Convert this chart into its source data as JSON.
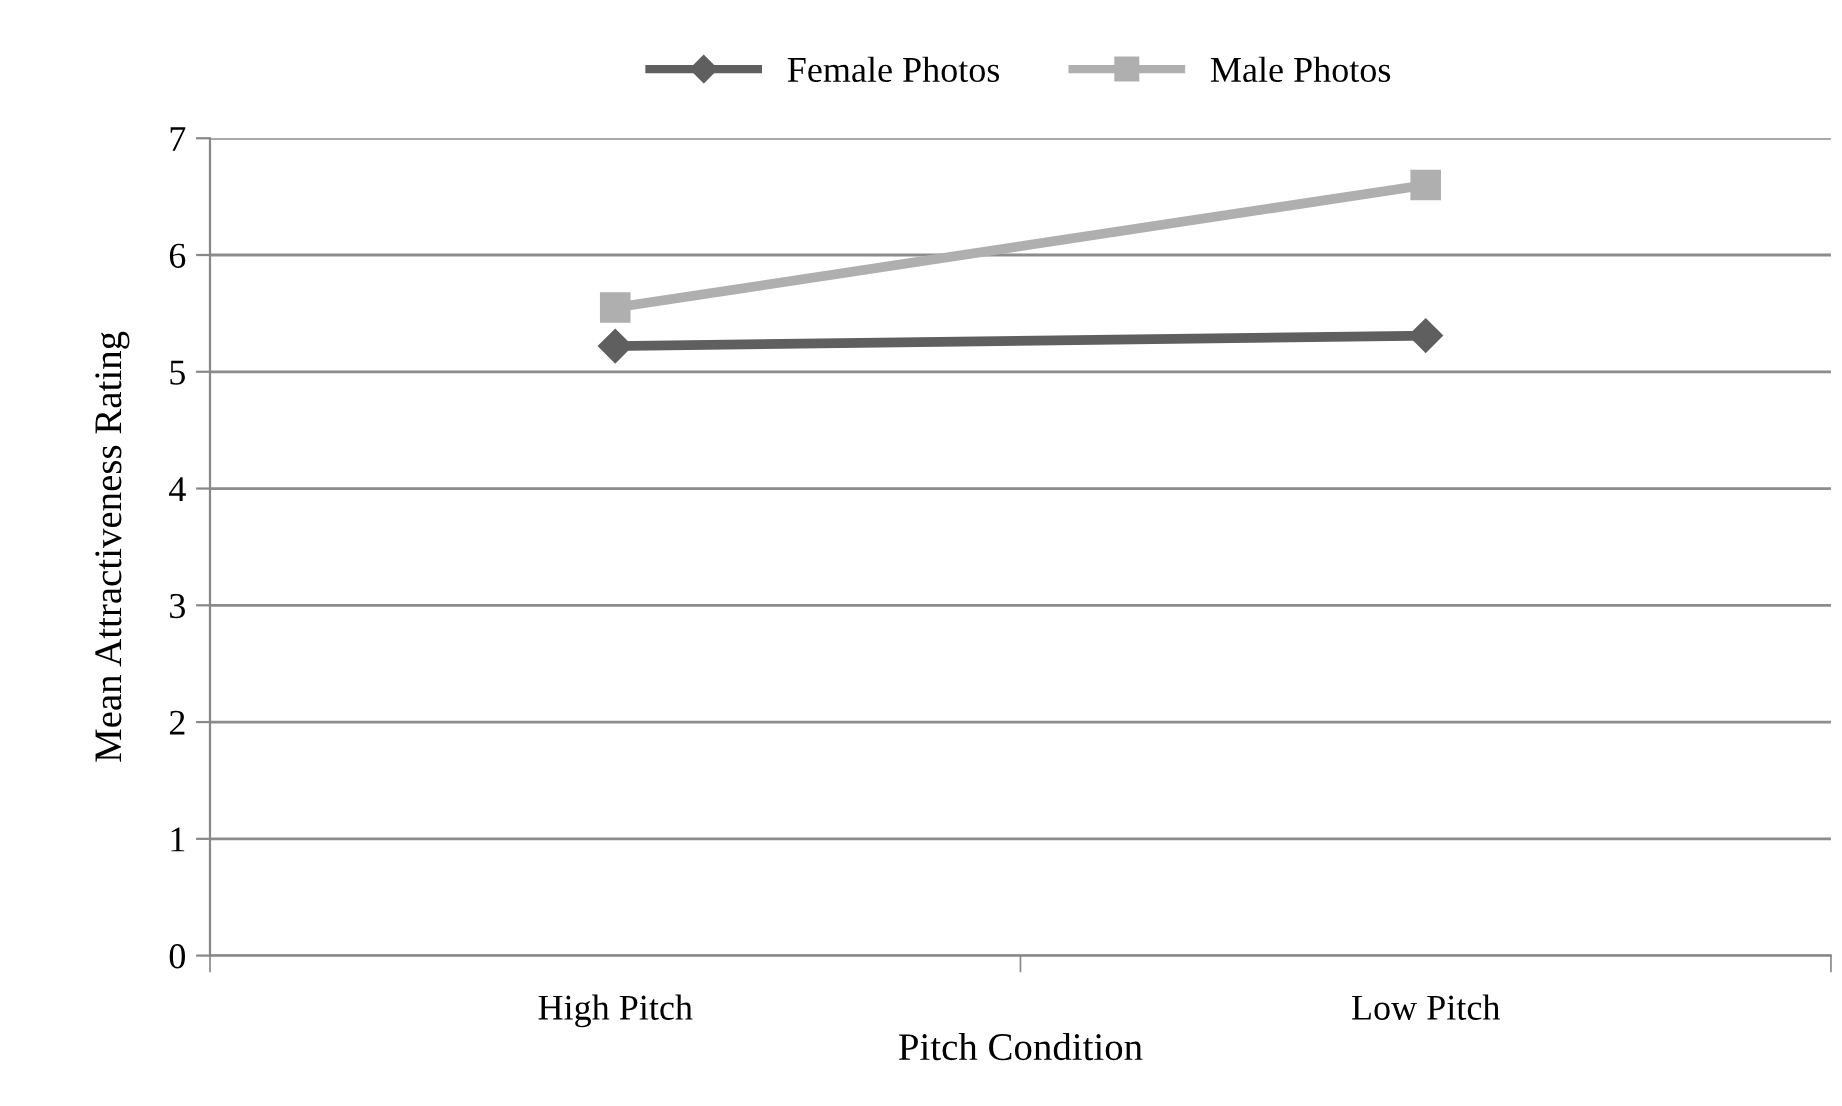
{
  "chart_data": {
    "type": "line",
    "xlabel": "Pitch Condition",
    "ylabel": "Mean Attractiveness Rating",
    "categories": [
      "High Pitch",
      "Low Pitch"
    ],
    "series": [
      {
        "name": "Female Photos",
        "color": "#5f5f5f",
        "marker": "diamond",
        "values": [
          5.22,
          5.31
        ]
      },
      {
        "name": "Male Photos",
        "color": "#afafaf",
        "marker": "square",
        "values": [
          5.55,
          6.6
        ]
      }
    ],
    "ylim": [
      0,
      7
    ],
    "yticks": [
      0,
      1,
      2,
      3,
      4,
      5,
      6,
      7
    ],
    "grid": "y",
    "legend": "top"
  }
}
